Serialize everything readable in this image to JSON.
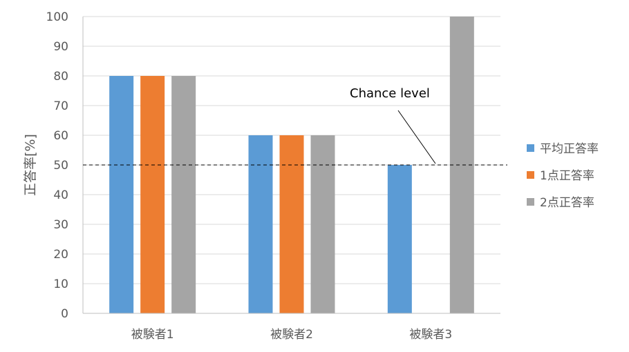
{
  "chart_data": {
    "type": "bar",
    "categories": [
      "被験者1",
      "被験者2",
      "被験者3"
    ],
    "series": [
      {
        "name": "平均正答率",
        "color": "#5b9bd5",
        "values": [
          80,
          60,
          50
        ]
      },
      {
        "name": "1点正答率",
        "color": "#ed7d31",
        "values": [
          80,
          60,
          0
        ]
      },
      {
        "name": "2点正答率",
        "color": "#a5a5a5",
        "values": [
          80,
          60,
          100
        ]
      }
    ],
    "ylabel": "正答率[%]",
    "xlabel": "",
    "ylim": [
      0,
      100
    ],
    "yticks": [
      0,
      10,
      20,
      30,
      40,
      50,
      60,
      70,
      80,
      90,
      100
    ],
    "grid": true,
    "legend_position": "right",
    "reference_line": {
      "value": 50,
      "style": "dashed",
      "label": "Chance level"
    }
  }
}
